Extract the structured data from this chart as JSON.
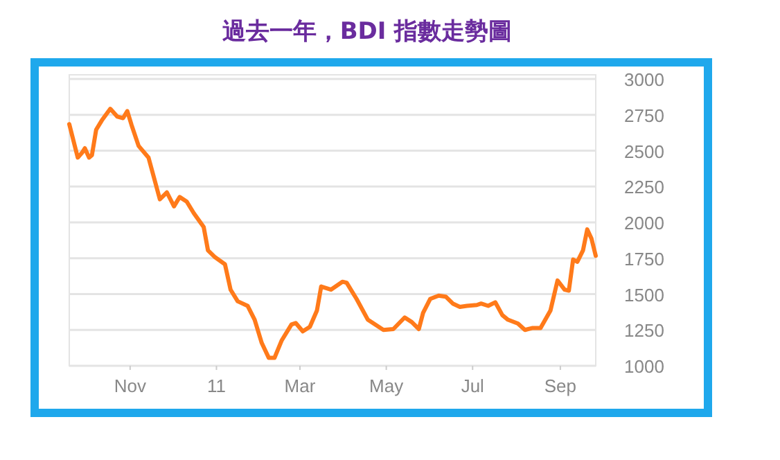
{
  "chart_data": {
    "type": "line",
    "title": "過去一年，BDI 指數走勢圖",
    "x": [
      "2010-09-19",
      "2010-09-25",
      "2010-09-28",
      "2010-09-30",
      "2010-10-03",
      "2010-10-05",
      "2010-10-08",
      "2010-10-12",
      "2010-10-18",
      "2010-10-23",
      "2010-10-27",
      "2010-10-30",
      "2010-11-02",
      "2010-11-07",
      "2010-11-14",
      "2010-11-22",
      "2010-11-27",
      "2010-12-02",
      "2010-12-06",
      "2010-12-11",
      "2010-12-16",
      "2010-12-23",
      "2010-12-26",
      "2010-12-31",
      "2011-01-07",
      "2011-01-11",
      "2011-01-16",
      "2011-01-23",
      "2011-01-28",
      "2011-02-02",
      "2011-02-07",
      "2011-02-11",
      "2011-02-16",
      "2011-02-23",
      "2011-02-26",
      "2011-03-03",
      "2011-03-08",
      "2011-03-13",
      "2011-03-16",
      "2011-03-23",
      "2011-03-31",
      "2011-04-03",
      "2011-04-10",
      "2011-04-18",
      "2011-04-29",
      "2011-05-06",
      "2011-05-14",
      "2011-05-19",
      "2011-05-24",
      "2011-05-27",
      "2011-06-01",
      "2011-06-07",
      "2011-06-12",
      "2011-06-17",
      "2011-06-22",
      "2011-06-27",
      "2011-07-04",
      "2011-07-07",
      "2011-07-12",
      "2011-07-17",
      "2011-07-22",
      "2011-07-26",
      "2011-08-02",
      "2011-08-07",
      "2011-08-12",
      "2011-08-18",
      "2011-08-25",
      "2011-08-30",
      "2011-09-04",
      "2011-09-07",
      "2011-09-10",
      "2011-09-13",
      "2011-09-17",
      "2011-09-20",
      "2011-09-23",
      "2011-09-26"
    ],
    "series": [
      {
        "color": "#ff7a1a",
        "values": [
          2685,
          2452,
          2485,
          2517,
          2452,
          2469,
          2646,
          2711,
          2792,
          2737,
          2727,
          2776,
          2679,
          2533,
          2452,
          2161,
          2209,
          2112,
          2177,
          2145,
          2064,
          1967,
          1805,
          1757,
          1708,
          1530,
          1450,
          1418,
          1321,
          1159,
          1055,
          1055,
          1175,
          1288,
          1298,
          1240,
          1272,
          1385,
          1553,
          1531,
          1586,
          1579,
          1466,
          1321,
          1250,
          1256,
          1337,
          1305,
          1256,
          1369,
          1466,
          1489,
          1482,
          1434,
          1411,
          1418,
          1424,
          1434,
          1418,
          1443,
          1353,
          1321,
          1295,
          1250,
          1263,
          1263,
          1385,
          1595,
          1531,
          1524,
          1741,
          1725,
          1805,
          1951,
          1886,
          1767
        ]
      }
    ],
    "xlim": [
      "2010-09-19",
      "2011-09-26"
    ],
    "xticks": [
      {
        "value": "2010-11-01",
        "label": "Nov"
      },
      {
        "value": "2011-01-01",
        "label": "11"
      },
      {
        "value": "2011-03-01",
        "label": "Mar"
      },
      {
        "value": "2011-05-01",
        "label": "May"
      },
      {
        "value": "2011-07-01",
        "label": "Jul"
      },
      {
        "value": "2011-09-01",
        "label": "Sep"
      }
    ],
    "ylim": [
      1000,
      3000
    ],
    "yticks": [
      1000,
      1250,
      1500,
      1750,
      2000,
      2250,
      2500,
      2750,
      3000
    ],
    "grid": "y",
    "marker": "none",
    "line_style": "solid"
  }
}
